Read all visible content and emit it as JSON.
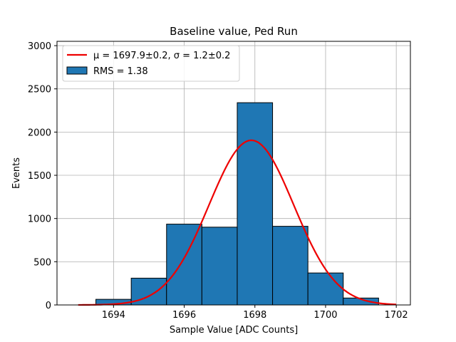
{
  "chart_data": {
    "type": "bar",
    "title": "Baseline value, Ped Run",
    "xlabel": "Sample Value [ADC Counts]",
    "ylabel": "Events",
    "xlim": [
      1692.4,
      1702.4
    ],
    "ylim": [
      0,
      3050
    ],
    "xticks": [
      1694,
      1696,
      1698,
      1700,
      1702
    ],
    "yticks": [
      0,
      500,
      1000,
      1500,
      2000,
      2500,
      3000
    ],
    "grid": true,
    "legend_position": "top-left",
    "histogram": {
      "name": "RMS = 1.38",
      "color": "#1f77b4",
      "edgecolor": "#000000",
      "bins": [
        {
          "from": 1692.5,
          "to": 1693.5,
          "count": 0
        },
        {
          "from": 1693.5,
          "to": 1694.5,
          "count": 65
        },
        {
          "from": 1694.5,
          "to": 1695.5,
          "count": 310
        },
        {
          "from": 1695.5,
          "to": 1696.5,
          "count": 935
        },
        {
          "from": 1696.5,
          "to": 1697.5,
          "count": 900
        },
        {
          "from": 1697.5,
          "to": 1698.5,
          "count": 2340
        },
        {
          "from": 1698.5,
          "to": 1699.5,
          "count": 910
        },
        {
          "from": 1699.5,
          "to": 1700.5,
          "count": 370
        },
        {
          "from": 1700.5,
          "to": 1701.5,
          "count": 80
        }
      ]
    },
    "fit": {
      "name_prefix": "μ = 1697.9±0.2, ",
      "name_sigma": "σ = 1.2±0.2",
      "color": "#ee0000",
      "mean": 1697.9,
      "sigma": 1.2,
      "amplitude": 1905,
      "x_range": [
        1693.0,
        1702.0
      ]
    }
  }
}
